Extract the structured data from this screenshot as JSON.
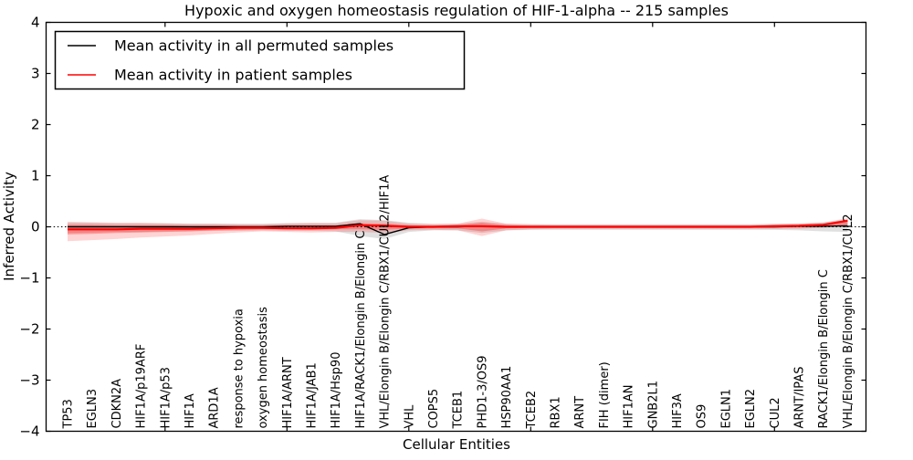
{
  "figure": {
    "title": "Hypoxic and oxygen homeostasis regulation of HIF-1-alpha -- 215 samples",
    "xlabel": "Cellular Entities",
    "ylabel": "Inferred Activity"
  },
  "legend": {
    "position": "upper left",
    "entries": [
      {
        "label": "Mean activity in all permuted samples",
        "color": "#000000"
      },
      {
        "label": "Mean activity in patient samples",
        "color": "#ff0000"
      }
    ]
  },
  "colors": {
    "patient_line": "#ff0000",
    "permuted_line": "#000000",
    "patient_band_outer": "rgba(255,0,0,0.17)",
    "patient_band_inner": "rgba(255,0,0,0.27)",
    "permuted_band": "rgba(100,100,100,0.20)",
    "frame": "#000000"
  },
  "chart_data": {
    "type": "line",
    "title": "Hypoxic and oxygen homeostasis regulation of HIF-1-alpha -- 215 samples",
    "xlabel": "Cellular Entities",
    "ylabel": "Inferred Activity",
    "ylim": [
      -4,
      4
    ],
    "yticks": [
      -4,
      -3,
      -2,
      -1,
      0,
      1,
      2,
      3,
      4
    ],
    "xtick_every": 5,
    "grid": false,
    "zero_line": true,
    "legend_position": "upper left",
    "categories": [
      "TP53",
      "EGLN3",
      "CDKN2A",
      "HIF1A/p19ARF",
      "HIF1A/p53",
      "HIF1A",
      "ARD1A",
      "response to hypoxia",
      "oxygen homeostasis",
      "HIF1A/ARNT",
      "HIF1A/JAB1",
      "HIF1A/Hsp90",
      "HIF1A/RACK1/Elongin B/Elongin C",
      "VHL/Elongin B/Elongin C/RBX1/CUL2/HIF1A",
      "VHL",
      "COPS5",
      "TCEB1",
      "PHD1-3/OS9",
      "HSP90AA1",
      "TCEB2",
      "RBX1",
      "ARNT",
      "FIH (dimer)",
      "HIF1AN",
      "GNB2L1",
      "HIF3A",
      "OS9",
      "EGLN1",
      "EGLN2",
      "CUL2",
      "ARNT/IPAS",
      "RACK1/Elongin B/Elongin C",
      "VHL/Elongin B/Elongin C/RBX1/CUL2"
    ],
    "series": [
      {
        "name": "Mean activity in all permuted samples",
        "color": "#000000",
        "values": [
          0,
          0,
          0,
          0,
          0,
          0,
          0,
          0,
          0,
          0.01,
          0.01,
          0.01,
          0.06,
          -0.15,
          -0.02,
          0,
          0,
          0.01,
          0,
          0,
          0,
          0,
          0,
          0,
          0,
          0,
          0,
          0,
          0,
          0,
          0.01,
          0.01,
          0.02
        ]
      },
      {
        "name": "Mean activity in patient samples",
        "color": "#ff0000",
        "values": [
          -0.05,
          -0.05,
          -0.05,
          -0.04,
          -0.04,
          -0.04,
          -0.03,
          -0.02,
          -0.02,
          -0.03,
          -0.03,
          -0.02,
          0.03,
          0.02,
          0,
          0,
          0.01,
          0.01,
          0,
          0,
          0,
          0,
          0,
          0,
          0,
          0,
          0,
          0,
          0,
          0.01,
          0.02,
          0.04,
          0.12
        ]
      }
    ],
    "bands": [
      {
        "name": "permuted-std-band",
        "color": "rgba(100,100,100,0.20)",
        "upper": [
          0.08,
          0.08,
          0.07,
          0.07,
          0.07,
          0.06,
          0.06,
          0.06,
          0.06,
          0.07,
          0.07,
          0.08,
          0.15,
          0.13,
          0.08,
          0.06,
          0.06,
          0.1,
          0.06,
          0.05,
          0.05,
          0.05,
          0.05,
          0.05,
          0.05,
          0.05,
          0.05,
          0.05,
          0.05,
          0.06,
          0.07,
          0.09,
          0.14
        ],
        "lower": [
          -0.12,
          -0.11,
          -0.1,
          -0.1,
          -0.09,
          -0.09,
          -0.08,
          -0.08,
          -0.07,
          -0.08,
          -0.08,
          -0.09,
          -0.18,
          -0.24,
          -0.1,
          -0.07,
          -0.07,
          -0.12,
          -0.07,
          -0.06,
          -0.06,
          -0.06,
          -0.06,
          -0.06,
          -0.06,
          -0.06,
          -0.06,
          -0.06,
          -0.06,
          -0.06,
          -0.07,
          -0.09,
          -0.1
        ]
      },
      {
        "name": "patient-std-band-outer",
        "color": "rgba(255,0,0,0.17)",
        "upper": [
          0.1,
          0.09,
          0.08,
          0.08,
          0.07,
          0.06,
          0.06,
          0.05,
          0.05,
          0.07,
          0.08,
          0.07,
          0.13,
          0.12,
          0.06,
          0.05,
          0.06,
          0.16,
          0.06,
          0.05,
          0.04,
          0.04,
          0.04,
          0.04,
          0.04,
          0.04,
          0.04,
          0.04,
          0.04,
          0.05,
          0.06,
          0.08,
          0.17
        ],
        "lower": [
          -0.28,
          -0.26,
          -0.24,
          -0.21,
          -0.19,
          -0.17,
          -0.14,
          -0.11,
          -0.09,
          -0.1,
          -0.11,
          -0.1,
          -0.1,
          -0.12,
          -0.07,
          -0.06,
          -0.07,
          -0.18,
          -0.07,
          -0.05,
          -0.04,
          -0.04,
          -0.04,
          -0.04,
          -0.04,
          -0.04,
          -0.04,
          -0.04,
          -0.04,
          -0.04,
          -0.04,
          -0.02,
          0.02
        ]
      },
      {
        "name": "patient-std-band-inner",
        "color": "rgba(255,0,0,0.27)",
        "upper": [
          0.04,
          0.04,
          0.03,
          0.03,
          0.03,
          0.02,
          0.02,
          0.02,
          0.02,
          0.03,
          0.03,
          0.03,
          0.07,
          0.06,
          0.03,
          0.02,
          0.03,
          0.08,
          0.03,
          0.02,
          0.02,
          0.02,
          0.02,
          0.02,
          0.02,
          0.02,
          0.02,
          0.02,
          0.02,
          0.03,
          0.03,
          0.05,
          0.14
        ],
        "lower": [
          -0.15,
          -0.14,
          -0.12,
          -0.11,
          -0.1,
          -0.09,
          -0.07,
          -0.06,
          -0.05,
          -0.05,
          -0.06,
          -0.05,
          -0.05,
          -0.06,
          -0.03,
          -0.03,
          -0.03,
          -0.09,
          -0.03,
          -0.02,
          -0.02,
          -0.02,
          -0.02,
          -0.02,
          -0.02,
          -0.02,
          -0.02,
          -0.02,
          -0.02,
          -0.02,
          -0.01,
          0.0,
          0.04
        ]
      }
    ]
  }
}
